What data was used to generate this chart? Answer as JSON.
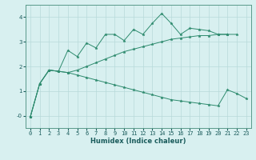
{
  "xlabel": "Humidex (Indice chaleur)",
  "x_values": [
    0,
    1,
    2,
    3,
    4,
    5,
    6,
    7,
    8,
    9,
    10,
    11,
    12,
    13,
    14,
    15,
    16,
    17,
    18,
    19,
    20,
    21,
    22,
    23
  ],
  "line1": [
    -0.05,
    1.3,
    1.85,
    1.8,
    2.65,
    2.4,
    2.95,
    2.75,
    3.3,
    3.3,
    3.05,
    3.5,
    3.3,
    3.75,
    4.15,
    3.75,
    3.3,
    3.55,
    3.5,
    3.45,
    3.3,
    3.3,
    null,
    null
  ],
  "line2": [
    -0.05,
    1.3,
    1.85,
    1.8,
    1.75,
    1.65,
    1.55,
    1.45,
    1.35,
    1.25,
    1.15,
    1.05,
    0.95,
    0.85,
    0.75,
    0.65,
    0.6,
    0.55,
    0.5,
    0.45,
    0.4,
    1.05,
    0.9,
    0.7
  ],
  "line3": [
    -0.05,
    1.3,
    1.85,
    1.8,
    1.75,
    1.85,
    2.0,
    2.15,
    2.3,
    2.45,
    2.6,
    2.7,
    2.8,
    2.9,
    3.0,
    3.1,
    3.15,
    3.2,
    3.25,
    3.25,
    3.3,
    3.3,
    3.3,
    null
  ],
  "line_color": "#2e8b6e",
  "marker": "*",
  "background_color": "#d8f0f0",
  "grid_color": "#b8dada",
  "ylim": [
    -0.5,
    4.5
  ],
  "xlim": [
    -0.5,
    23.5
  ],
  "yticks": [
    0,
    1,
    2,
    3,
    4
  ],
  "ytick_labels": [
    "-0",
    "1",
    "2",
    "3",
    "4"
  ]
}
